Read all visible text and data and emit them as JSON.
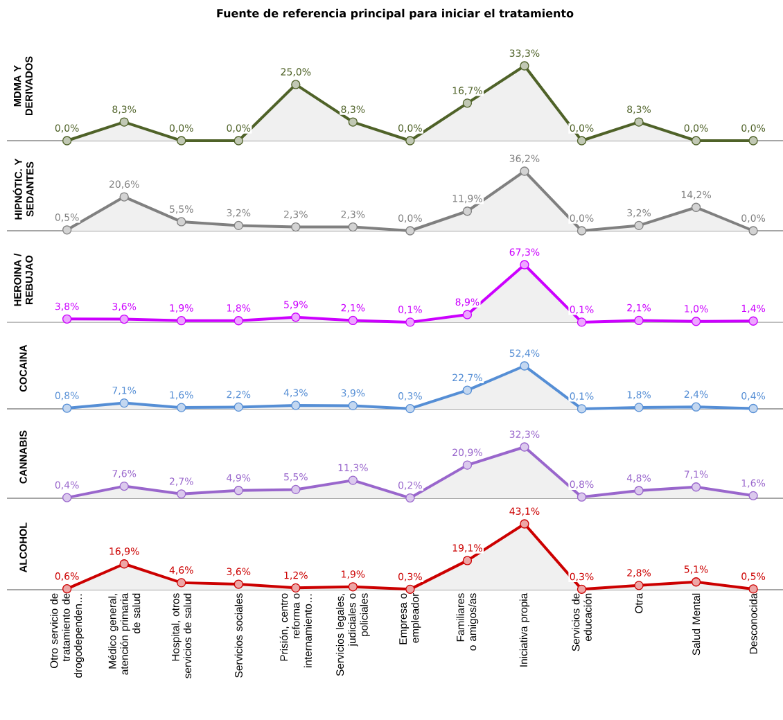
{
  "chart_data": [
    {
      "type": "line",
      "title": "Fuente de referencia principal para iniciar el tratamiento",
      "ylabel": "MDMA Y DERIVADOS",
      "categories": [
        null,
        null,
        null,
        null,
        null,
        null,
        null,
        null,
        null,
        null,
        null,
        null,
        null
      ],
      "color": "#4f6228",
      "marker": "circle",
      "values": [
        0.0,
        8.3,
        0.0,
        0.0,
        25.0,
        8.3,
        0.0,
        16.7,
        33.3,
        0.0,
        8.3,
        0.0,
        0.0
      ],
      "value_labels": [
        "0,0%",
        "8,3%",
        "0,0%",
        "0,0%",
        "25,0%",
        "8,3%",
        "0,0%",
        "16,7%",
        "33,3%",
        "0,0%",
        "8,3%",
        "0,0%",
        "0,0%"
      ]
    },
    {
      "type": "line",
      "ylabel": "HIPNÓTIC. Y SEDANTES",
      "categories": [
        null,
        null,
        null,
        null,
        null,
        null,
        null,
        null,
        null,
        null,
        null,
        null,
        null
      ],
      "color": "#808080",
      "marker": "circle",
      "values": [
        0.5,
        20.6,
        5.5,
        3.2,
        2.3,
        2.3,
        0.0,
        11.9,
        36.2,
        0.0,
        3.2,
        14.2,
        0.0
      ],
      "value_labels": [
        "0,5%",
        "20,6%",
        "5,5%",
        "3,2%",
        "2,3%",
        "2,3%",
        "0,0%",
        "11,9%",
        "36,2%",
        "0,0%",
        "3,2%",
        "14,2%",
        "0,0%"
      ]
    },
    {
      "type": "line",
      "ylabel": "HEROINA / REBUJAO",
      "categories": [
        null,
        null,
        null,
        null,
        null,
        null,
        null,
        null,
        null,
        null,
        null,
        null,
        null
      ],
      "color": "#cc00ff",
      "marker": "circle",
      "values": [
        3.8,
        3.6,
        1.9,
        1.8,
        5.9,
        2.1,
        0.1,
        8.9,
        67.3,
        0.1,
        2.1,
        1.0,
        1.4
      ],
      "value_labels": [
        "3,8%",
        "3,6%",
        "1,9%",
        "1,8%",
        "5,9%",
        "2,1%",
        "0,1%",
        "8,9%",
        "67,3%",
        "0,1%",
        "2,1%",
        "1,0%",
        "1,4%"
      ]
    },
    {
      "type": "line",
      "ylabel": "COCAINA",
      "categories": [
        null,
        null,
        null,
        null,
        null,
        null,
        null,
        null,
        null,
        null,
        null,
        null,
        null
      ],
      "color": "#558ed5",
      "marker": "circle",
      "values": [
        0.8,
        7.1,
        1.6,
        2.2,
        4.3,
        3.9,
        0.3,
        22.7,
        52.4,
        0.1,
        1.8,
        2.4,
        0.4
      ],
      "value_labels": [
        "0,8%",
        "7,1%",
        "1,6%",
        "2,2%",
        "4,3%",
        "3,9%",
        "0,3%",
        "22,7%",
        "52,4%",
        "0,1%",
        "1,8%",
        "2,4%",
        "0,4%"
      ]
    },
    {
      "type": "line",
      "ylabel": "CANNABIS",
      "categories": [
        null,
        null,
        null,
        null,
        null,
        null,
        null,
        null,
        null,
        null,
        null,
        null,
        null
      ],
      "color": "#9966cc",
      "marker": "circle",
      "values": [
        0.4,
        7.6,
        2.7,
        4.9,
        5.5,
        11.3,
        0.2,
        20.9,
        32.3,
        0.8,
        4.8,
        7.1,
        1.6
      ],
      "value_labels": [
        "0,4%",
        "7,6%",
        "2,7%",
        "4,9%",
        "5,5%",
        "11,3%",
        "0,2%",
        "20,9%",
        "32,3%",
        "0,8%",
        "4,8%",
        "7,1%",
        "1,6%"
      ]
    },
    {
      "type": "line",
      "ylabel": "ALCOHOL",
      "categories": [
        "Otro servicio de tratamiento de drogodependen…",
        "Médico general, atención primaria de salud",
        "Hospital, otros servicios de salud",
        "Servicios sociales",
        "Prisión, centro reforma o internamiento…",
        "Servicios legales, judiciales o policiales",
        "Empresa o empleador",
        "Familiares o amigos/as",
        "Iniciativa propia",
        "Servicios de educación",
        "Otra",
        "Salud Mental",
        "Desconocida"
      ],
      "tick_labels": "x",
      "color": "#cc0000",
      "marker": "circle",
      "values": [
        0.6,
        16.9,
        4.6,
        3.6,
        1.2,
        1.9,
        0.3,
        19.1,
        43.1,
        0.3,
        2.8,
        5.1,
        0.5
      ],
      "value_labels": [
        "0,6%",
        "16,9%",
        "4,6%",
        "3,6%",
        "1,2%",
        "1,9%",
        "0,3%",
        "19,1%",
        "43,1%",
        "0,3%",
        "2,8%",
        "5,1%",
        "0,5%"
      ]
    }
  ]
}
